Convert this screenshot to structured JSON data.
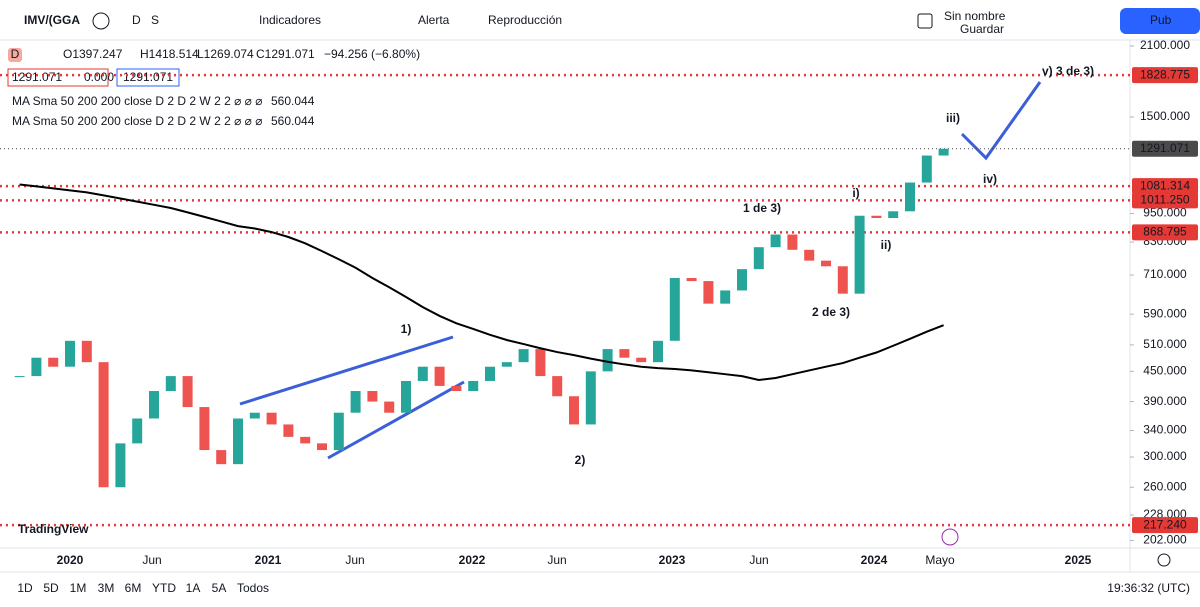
{
  "toolbar": {
    "symbol": "IMV/(GGA",
    "interval": "D",
    "mode": "S",
    "indicators": "Indicadores",
    "alert": "Alerta",
    "replay": "Reproducción",
    "layout_name": "Sin nombre",
    "save": "Guardar",
    "publish": "Pub"
  },
  "legend": {
    "badge": "D",
    "open": "O1397.247",
    "high": "H1418.514",
    "low": "L1269.074",
    "close": "C1291.071",
    "change": "−94.256 (−6.80%)",
    "boxes": [
      "1291.071",
      "0.000",
      "1291.071"
    ],
    "ma": [
      {
        "text": "MA Sma 50 200 200 close D 2 D 2 W 2 2  ⌀ ⌀ ⌀",
        "value": "560.044"
      },
      {
        "text": "MA Sma 50 200 200 close D 2 D 2 W 2 2  ⌀ ⌀ ⌀",
        "value": "560.044"
      }
    ]
  },
  "price_axis": {
    "log_scale": true,
    "ylim": [
      195,
      2160
    ],
    "yticks": [
      {
        "value": 2100,
        "label": "2100.000"
      },
      {
        "value": 1500,
        "label": "1500.000"
      },
      {
        "value": 950,
        "label": "950.000"
      },
      {
        "value": 830,
        "label": "830.000"
      },
      {
        "value": 710,
        "label": "710.000"
      },
      {
        "value": 590,
        "label": "590.000"
      },
      {
        "value": 510,
        "label": "510.000"
      },
      {
        "value": 450,
        "label": "450.000"
      },
      {
        "value": 390,
        "label": "390.000"
      },
      {
        "value": 340,
        "label": "340.000"
      },
      {
        "value": 300,
        "label": "300.000"
      },
      {
        "value": 260,
        "label": "260.000"
      },
      {
        "value": 228,
        "label": "228.000"
      },
      {
        "value": 202,
        "label": "202.000"
      }
    ]
  },
  "levels": [
    {
      "value": 1828.775,
      "label": "1828.775",
      "color": "#e53935"
    },
    {
      "value": 1291.071,
      "label": "1291.071",
      "color": "#4a4a4a"
    },
    {
      "value": 1081.314,
      "label": "1081.314",
      "color": "#e53935"
    },
    {
      "value": 1011.25,
      "label": "1011.250",
      "color": "#e53935"
    },
    {
      "value": 868.795,
      "label": "868.795",
      "color": "#e53935"
    },
    {
      "value": 217.24,
      "label": "217.240",
      "color": "#e53935"
    }
  ],
  "time_axis": [
    "2020",
    "Jun",
    "2021",
    "Jun",
    "2022",
    "Jun",
    "2023",
    "Jun",
    "2024",
    "Mayo",
    "2025"
  ],
  "candles": {
    "close": [
      440,
      480,
      460,
      520,
      470,
      260,
      320,
      360,
      410,
      440,
      380,
      310,
      290,
      360,
      370,
      350,
      330,
      320,
      310,
      370,
      410,
      390,
      370,
      430,
      460,
      420,
      410,
      430,
      460,
      470,
      500,
      440,
      400,
      350,
      450,
      500,
      480,
      470,
      520,
      700,
      690,
      620,
      660,
      730,
      810,
      860,
      800,
      760,
      740,
      650,
      940,
      930,
      960,
      1100,
      1250,
      1291.071
    ],
    "sma": [
      1090,
      1080,
      1070,
      1060,
      1050,
      1035,
      1020,
      1005,
      990,
      975,
      955,
      935,
      915,
      895,
      885,
      870,
      850,
      825,
      795,
      765,
      735,
      700,
      670,
      640,
      610,
      585,
      565,
      550,
      535,
      522,
      512,
      502,
      493,
      486,
      478,
      471,
      465,
      460,
      457,
      455,
      452,
      448,
      444,
      440,
      432,
      436,
      444,
      452,
      460,
      468,
      480,
      492,
      508,
      525,
      543,
      560.044
    ]
  },
  "annotations": [
    "1)",
    "2)",
    "1 de 3)",
    "2 de 3)",
    "i)",
    "ii)",
    "iii)",
    "iv)",
    "v) 3 de 3)"
  ],
  "logo": "TradingView",
  "ranges": [
    "1D",
    "5D",
    "1M",
    "3M",
    "6M",
    "YTD",
    "1A",
    "5A",
    "Todos"
  ],
  "clock": "19:36:32 (UTC)"
}
